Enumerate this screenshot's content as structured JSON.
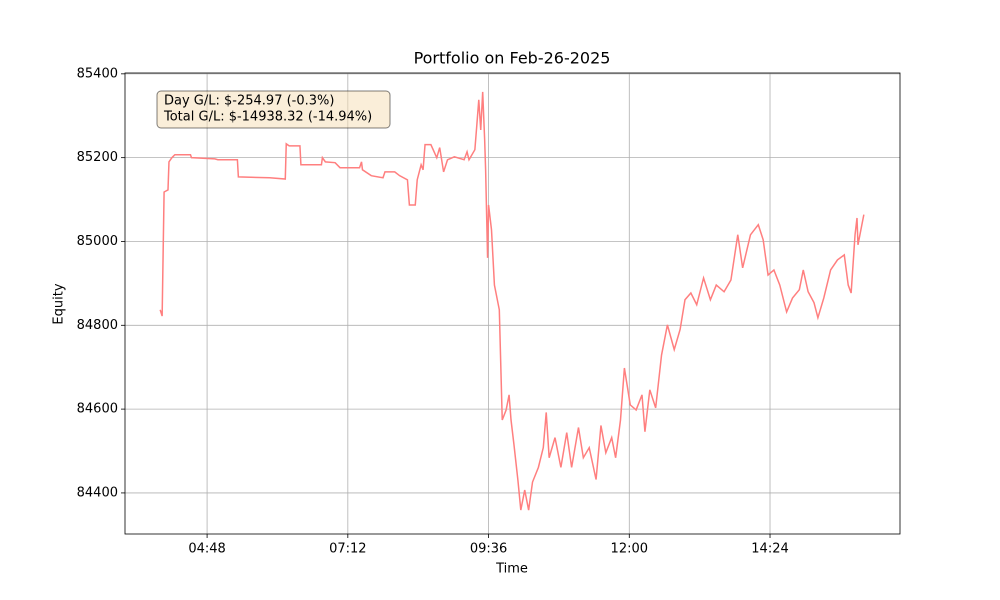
{
  "chart_data": {
    "type": "line",
    "title": "Portfolio on Feb-26-2025",
    "xlabel": "Time",
    "ylabel": "Equity",
    "annotation": [
      "Day G/L: $-254.97 (-0.3%)",
      "Total G/L: $-14938.32 (-14.94%)"
    ],
    "x": [
      "04:00",
      "04:02",
      "04:04",
      "04:08",
      "04:09",
      "04:12",
      "04:15",
      "04:31",
      "04:32",
      "04:56",
      "04:59",
      "05:19",
      "05:20",
      "05:52",
      "06:08",
      "06:09",
      "06:12",
      "06:23",
      "06:24",
      "06:45",
      "06:46",
      "06:49",
      "06:59",
      "07:04",
      "07:24",
      "07:26",
      "07:27",
      "07:36",
      "07:48",
      "07:50",
      "08:00",
      "08:05",
      "08:13",
      "08:15",
      "08:21",
      "08:23",
      "08:27",
      "08:29",
      "08:31",
      "08:37",
      "08:43",
      "08:46",
      "08:50",
      "08:54",
      "09:01",
      "09:11",
      "09:14",
      "09:16",
      "09:22",
      "09:24",
      "09:26",
      "09:28",
      "09:30",
      "09:32",
      "09:33",
      "09:35",
      "09:36",
      "09:39",
      "09:42",
      "09:47",
      "09:50",
      "09:54",
      "09:57",
      "09:59",
      "10:02",
      "10:06",
      "10:09",
      "10:13",
      "10:17",
      "10:21",
      "10:27",
      "10:32",
      "10:35",
      "10:38",
      "10:44",
      "10:50",
      "10:56",
      "11:01",
      "11:08",
      "11:13",
      "11:19",
      "11:26",
      "11:31",
      "11:36",
      "11:42",
      "11:46",
      "11:51",
      "11:55",
      "12:01",
      "12:07",
      "12:13",
      "12:16",
      "12:21",
      "12:27",
      "12:33",
      "12:39",
      "12:46",
      "12:52",
      "12:57",
      "13:03",
      "13:09",
      "13:16",
      "13:23",
      "13:29",
      "13:37",
      "13:44",
      "13:51",
      "13:56",
      "14:04",
      "14:12",
      "14:17",
      "14:22",
      "14:28",
      "14:34",
      "14:41",
      "14:47",
      "14:54",
      "14:58",
      "15:03",
      "15:09",
      "15:13",
      "15:19",
      "15:26",
      "15:33",
      "15:40",
      "15:44",
      "15:47",
      "15:51",
      "15:53",
      "15:54",
      "15:57",
      "16:00"
    ],
    "series": [
      {
        "color": "#ff7f7f",
        "values": [
          84837,
          84822,
          85118,
          85123,
          85190,
          85200,
          85207,
          85207,
          85200,
          85197,
          85195,
          85195,
          85154,
          85152,
          85149,
          85233,
          85228,
          85228,
          85183,
          85183,
          85200,
          85190,
          85188,
          85176,
          85176,
          85190,
          85171,
          85157,
          85152,
          85166,
          85166,
          85157,
          85147,
          85087,
          85087,
          85147,
          85183,
          85171,
          85231,
          85231,
          85200,
          85224,
          85166,
          85195,
          85202,
          85195,
          85214,
          85195,
          85219,
          85278,
          85338,
          85266,
          85357,
          85243,
          85171,
          84961,
          85087,
          85028,
          84896,
          84837,
          84574,
          84598,
          84634,
          84574,
          84515,
          84431,
          84359,
          84407,
          84359,
          84426,
          84461,
          84508,
          84592,
          84484,
          84532,
          84461,
          84544,
          84461,
          84556,
          84484,
          84508,
          84432,
          84561,
          84496,
          84532,
          84484,
          84574,
          84698,
          84610,
          84598,
          84634,
          84546,
          84646,
          84603,
          84729,
          84801,
          84742,
          84790,
          84861,
          84877,
          84849,
          84913,
          84861,
          84896,
          84880,
          84908,
          85016,
          84937,
          85016,
          85040,
          85004,
          84920,
          84932,
          84896,
          84832,
          84865,
          84885,
          84932,
          84880,
          84854,
          84818,
          84865,
          84932,
          84956,
          84968,
          84896,
          84877,
          85016,
          85056,
          84992,
          85028,
          85064
        ]
      }
    ],
    "xlim": [
      "03:24",
      "16:37"
    ],
    "xticks": [
      "04:48",
      "07:12",
      "09:36",
      "12:00",
      "14:24"
    ],
    "ylim": [
      84302,
      85402
    ],
    "yticks": [
      84400,
      84600,
      84800,
      85000,
      85200,
      85400
    ],
    "grid": true
  }
}
